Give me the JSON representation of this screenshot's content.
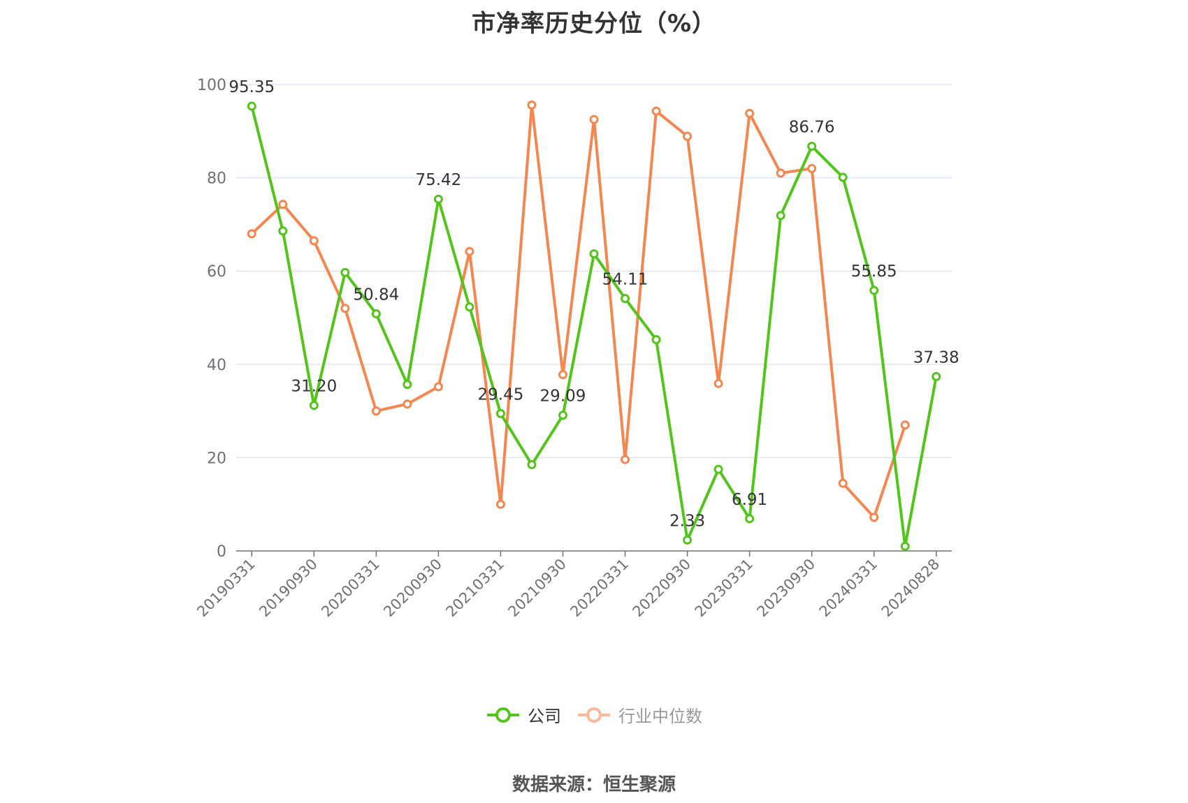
{
  "chart_data": {
    "type": "line",
    "title": "市净率历史分位（%）",
    "source": "数据来源：恒生聚源",
    "ylim": [
      0,
      100
    ],
    "yticks": [
      0,
      20,
      40,
      60,
      80,
      100
    ],
    "grid": true,
    "legend_position": "bottom",
    "x_tick_labels": [
      "20190331",
      "20190930",
      "20200331",
      "20200930",
      "20210331",
      "20210930",
      "20220331",
      "20220930",
      "20230331",
      "20230930",
      "20240331",
      "20240828"
    ],
    "x": [
      "20190331",
      "20190630",
      "20190930",
      "20191231",
      "20200331",
      "20200630",
      "20200930",
      "20201231",
      "20210331",
      "20210630",
      "20210930",
      "20211231",
      "20220331",
      "20220630",
      "20220930",
      "20221231",
      "20230331",
      "20230630",
      "20230930",
      "20231231",
      "20240331",
      "20240630",
      "20240828"
    ],
    "series": [
      {
        "name": "公司",
        "color": "#52c41a",
        "values": [
          95.35,
          68.6,
          31.2,
          59.7,
          50.84,
          35.7,
          75.42,
          52.3,
          29.45,
          18.5,
          29.09,
          63.7,
          54.11,
          45.3,
          2.33,
          17.5,
          6.91,
          71.9,
          86.76,
          80.1,
          55.85,
          1.0,
          37.38
        ],
        "labels": {
          "0": "95.35",
          "2": "31.20",
          "4": "50.84",
          "6": "75.42",
          "8": "29.45",
          "10": "29.09",
          "12": "54.11",
          "14": "2.33",
          "16": "6.91",
          "18": "86.76",
          "20": "55.85",
          "22": "37.38"
        }
      },
      {
        "name": "行业中位数",
        "color": "#f5864f",
        "values": [
          68.0,
          74.3,
          66.5,
          52.0,
          30.0,
          31.5,
          35.2,
          64.2,
          10.0,
          95.6,
          37.8,
          92.5,
          19.6,
          94.3,
          88.9,
          35.9,
          93.8,
          81.0,
          82.0,
          14.5,
          7.2,
          27.0,
          null
        ]
      }
    ]
  }
}
